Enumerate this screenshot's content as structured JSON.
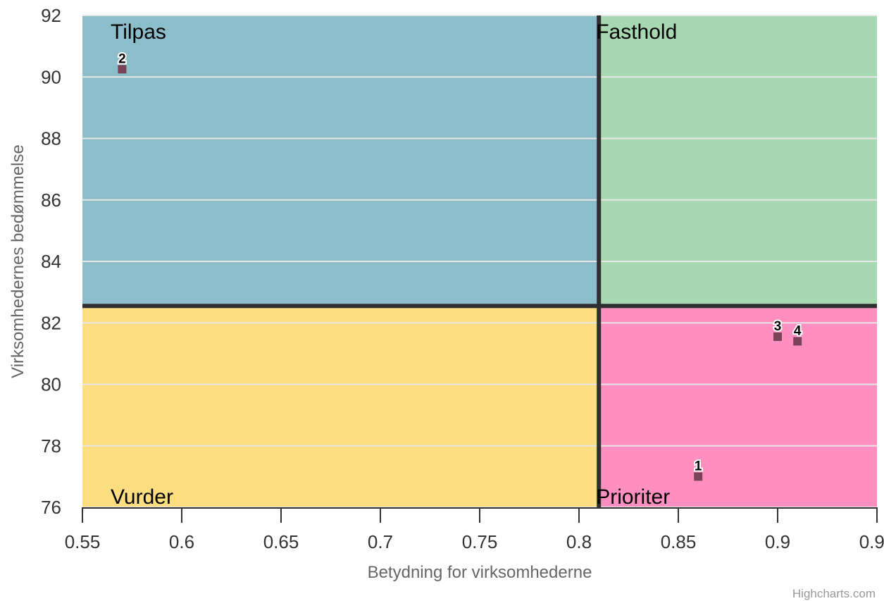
{
  "chart_data": {
    "type": "scatter",
    "xlabel": "Betydning for virksomhederne",
    "ylabel": "Virksomhedernes bedømmelse",
    "xlim": [
      0.55,
      0.95
    ],
    "ylim": [
      76,
      92
    ],
    "x_ticks": [
      0.55,
      0.6,
      0.65,
      0.7,
      0.75,
      0.8,
      0.85,
      0.9,
      0.95
    ],
    "x_tick_labels": [
      "0.55",
      "0.6",
      "0.65",
      "0.7",
      "0.75",
      "0.8",
      "0.85",
      "0.9",
      "0.95"
    ],
    "y_ticks": [
      76,
      78,
      80,
      82,
      84,
      86,
      88,
      90,
      92
    ],
    "y_tick_labels": [
      "76",
      "78",
      "80",
      "82",
      "84",
      "86",
      "88",
      "90",
      "92"
    ],
    "grid": "horizontal",
    "divider_x": 0.81,
    "divider_y": 82.55,
    "quadrants": [
      {
        "name": "top-left",
        "label": "Tilpas",
        "color": "#8bbdca"
      },
      {
        "name": "top-right",
        "label": "Fasthold",
        "color": "#a8d8b2"
      },
      {
        "name": "bottom-left",
        "label": "Vurder",
        "color": "#fcdd80"
      },
      {
        "name": "bottom-right",
        "label": "Prioriter",
        "color": "#ff8fc0"
      }
    ],
    "points": [
      {
        "label": "1",
        "x": 0.86,
        "y": 77.0
      },
      {
        "label": "2",
        "x": 0.57,
        "y": 90.25
      },
      {
        "label": "3",
        "x": 0.9,
        "y": 81.55
      },
      {
        "label": "4",
        "x": 0.91,
        "y": 81.4
      }
    ],
    "marker_color": "#7a4358",
    "divider_color": "#2f2f2f",
    "credits": "Highcharts.com"
  }
}
